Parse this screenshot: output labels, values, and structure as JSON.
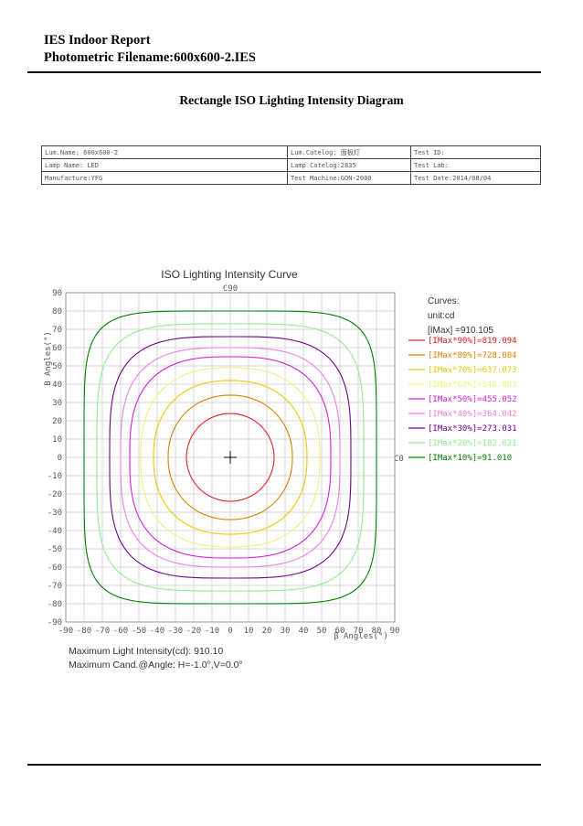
{
  "header": {
    "line1": "IES Indoor Report",
    "line2": "Photometric Filename:600x600-2.IES"
  },
  "diagram_title": "Rectangle ISO Lighting Intensity Diagram",
  "info_table": {
    "rows": [
      [
        "Lum.Name:    600x600-2",
        "Lum.Catelog: 面板灯",
        "Test ID:"
      ],
      [
        "Lamp Name:  LED",
        "Lamp Catelog:2835",
        "Test Lab:"
      ],
      [
        "Manufacture:YFG",
        "Test Machine:GON-2000",
        "Test Date:2014/08/04"
      ]
    ]
  },
  "chart_data": {
    "type": "contour",
    "title": "ISO Lighting Intensity Curve",
    "top_label": "C90",
    "right_label": "C0",
    "xlabel": "β Angles(°)",
    "ylabel": "B Angles(°)",
    "xlim": [
      -90,
      90
    ],
    "ylim": [
      -90,
      90
    ],
    "xticks": [
      -90,
      -80,
      -70,
      -60,
      -50,
      -40,
      -30,
      -20,
      -10,
      0,
      10,
      20,
      30,
      40,
      50,
      60,
      70,
      80,
      90
    ],
    "yticks": [
      90,
      80,
      70,
      60,
      50,
      40,
      30,
      20,
      10,
      0,
      -10,
      -20,
      -30,
      -40,
      -50,
      -60,
      -70,
      -80,
      -90
    ],
    "grid": true,
    "center_marker": [
      0,
      0
    ],
    "legend": {
      "position": "right",
      "header": [
        "Curves:",
        "unit:cd",
        "[IMax]    =910.105"
      ]
    },
    "series": [
      {
        "name": "[IMax*90%]=819.094",
        "value": 819.094,
        "half_width": 24,
        "shape": 2.0,
        "color": "#e02020"
      },
      {
        "name": "[IMax*80%]=728.084",
        "value": 728.084,
        "half_width": 34,
        "shape": 2.1,
        "color": "#e08000"
      },
      {
        "name": "[IMax*70%]=637.073",
        "value": 637.073,
        "half_width": 42,
        "shape": 2.3,
        "color": "#e6c800"
      },
      {
        "name": "[IMax*60%]=546.063",
        "value": 546.063,
        "half_width": 49,
        "shape": 2.5,
        "color": "#f2f27a"
      },
      {
        "name": "[IMax*50%]=455.052",
        "value": 455.052,
        "half_width": 55,
        "shape": 2.8,
        "color": "#d620d6"
      },
      {
        "name": "[IMax*40%]=364.042",
        "value": 364.042,
        "half_width": 60,
        "shape": 3.1,
        "color": "#f080e0"
      },
      {
        "name": "[IMax*30%]=273.031",
        "value": 273.031,
        "half_width": 66,
        "shape": 3.5,
        "color": "#700090"
      },
      {
        "name": "[IMax*20%]=182.021",
        "value": 182.021,
        "half_width": 73,
        "shape": 4.2,
        "color": "#90ee90"
      },
      {
        "name": "[IMax*10%]=91.010",
        "value": 91.01,
        "half_width": 80,
        "shape": 5.5,
        "color": "#008000"
      }
    ]
  },
  "summary": {
    "max_intensity": "Maximum Light Intensity(cd): 910.10",
    "max_angle": "Maximum Cand.@Angle: H=-1.0°,V=0.0°"
  }
}
